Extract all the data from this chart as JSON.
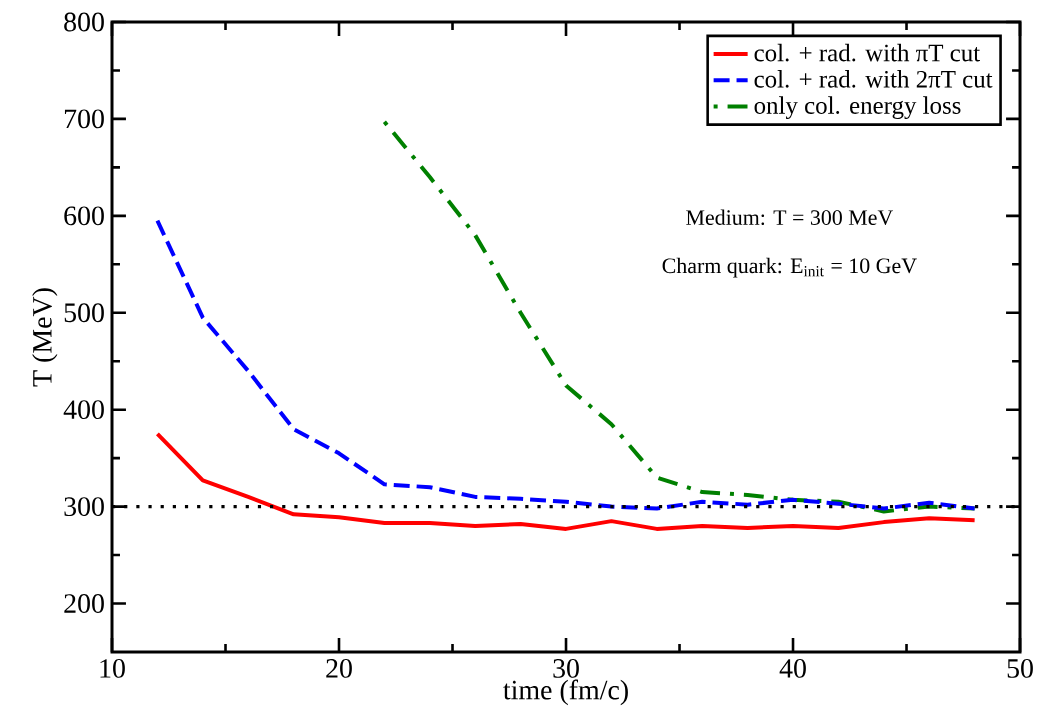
{
  "chart_data": {
    "type": "line",
    "xlabel": "time (fm/c)",
    "ylabel": "T (MeV)",
    "x": [
      12,
      14,
      16,
      18,
      20,
      22,
      24,
      26,
      28,
      30,
      32,
      34,
      36,
      38,
      40,
      42,
      44,
      46,
      48
    ],
    "series": [
      {
        "name": "col. + rad. with πT cut",
        "color": "#ff0000",
        "line_style": "solid",
        "values": [
          375,
          327,
          310,
          292,
          289,
          283,
          283,
          280,
          282,
          277,
          285,
          277,
          280,
          278,
          280,
          278,
          284,
          288,
          286
        ]
      },
      {
        "name": "col. + rad. with 2πT cut",
        "color": "#0000ff",
        "line_style": "dashed",
        "values": [
          595,
          495,
          440,
          380,
          355,
          323,
          320,
          310,
          308,
          305,
          300,
          298,
          305,
          302,
          307,
          303,
          298,
          304,
          298
        ]
      },
      {
        "name": "only col. energy loss",
        "color": "#008000",
        "line_style": "dashdot",
        "values": [
          null,
          null,
          null,
          null,
          null,
          697,
          640,
          580,
          500,
          425,
          385,
          330,
          315,
          312,
          307,
          305,
          295,
          300,
          298
        ]
      }
    ],
    "xlim": [
      10,
      50
    ],
    "ylim": [
      150,
      800
    ],
    "xticks": [
      10,
      20,
      30,
      40,
      50
    ],
    "yticks": [
      200,
      300,
      400,
      500,
      600,
      700,
      800
    ],
    "ref_lines": [
      {
        "axis": "y",
        "value": 300,
        "color": "#000000",
        "line_style": "dotted"
      }
    ],
    "annotations": [
      "Medium: T = 300 MeV",
      "Charm quark: E$_{init}$ = 10 GeV"
    ],
    "legend": "top right",
    "grid": false
  }
}
